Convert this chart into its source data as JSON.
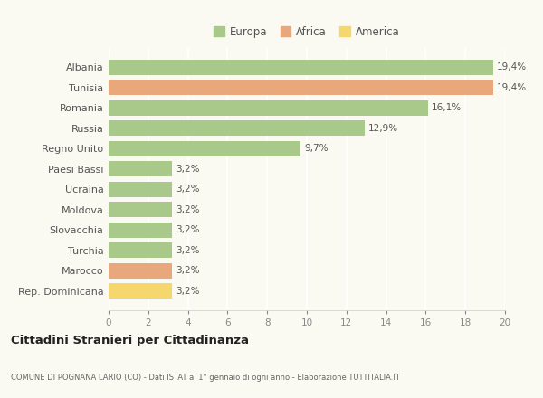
{
  "categories": [
    "Albania",
    "Tunisia",
    "Romania",
    "Russia",
    "Regno Unito",
    "Paesi Bassi",
    "Ucraina",
    "Moldova",
    "Slovacchia",
    "Turchia",
    "Marocco",
    "Rep. Dominicana"
  ],
  "values": [
    19.4,
    19.4,
    16.1,
    12.9,
    9.7,
    3.2,
    3.2,
    3.2,
    3.2,
    3.2,
    3.2,
    3.2
  ],
  "labels": [
    "19,4%",
    "19,4%",
    "16,1%",
    "12,9%",
    "9,7%",
    "3,2%",
    "3,2%",
    "3,2%",
    "3,2%",
    "3,2%",
    "3,2%",
    "3,2%"
  ],
  "continent": [
    "Europa",
    "Africa",
    "Europa",
    "Europa",
    "Europa",
    "Europa",
    "Europa",
    "Europa",
    "Europa",
    "Europa",
    "Africa",
    "America"
  ],
  "colors": {
    "Europa": "#a8c98a",
    "Africa": "#e8a87c",
    "America": "#f5d76e"
  },
  "legend_items": [
    {
      "label": "Europa",
      "color": "#a8c98a"
    },
    {
      "label": "Africa",
      "color": "#e8a87c"
    },
    {
      "label": "America",
      "color": "#f5d76e"
    }
  ],
  "xlim": [
    0,
    20
  ],
  "xticks": [
    0,
    2,
    4,
    6,
    8,
    10,
    12,
    14,
    16,
    18,
    20
  ],
  "title": "Cittadini Stranieri per Cittadinanza",
  "subtitle": "COMUNE DI POGNANA LARIO (CO) - Dati ISTAT al 1° gennaio di ogni anno - Elaborazione TUTTITALIA.IT",
  "bg_color": "#fafaf2",
  "grid_color": "#ffffff",
  "bar_height": 0.75
}
